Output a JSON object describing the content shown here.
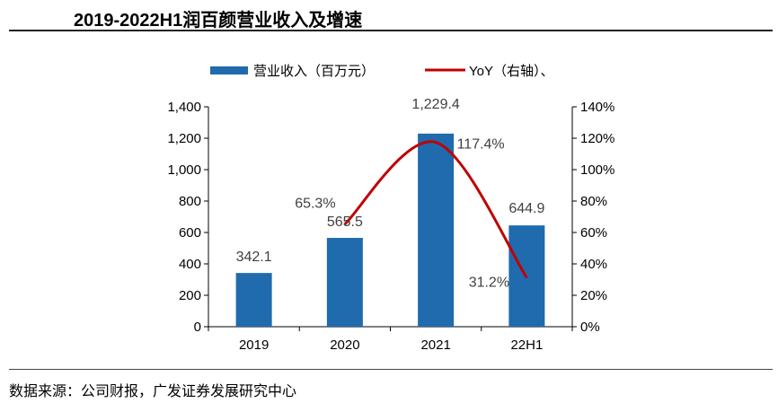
{
  "title": "2019-2022H1润百颜营业收入及增速",
  "source": "数据来源：公司财报，广发证券发展研究中心",
  "chart_data": {
    "type": "bar",
    "title": "2019-2022H1润百颜营业收入及增速",
    "categories": [
      "2019",
      "2020",
      "2021",
      "22H1"
    ],
    "series": [
      {
        "name": "营业收入（百万元）",
        "type": "bar",
        "axis": "left",
        "color": "#1F6BAE",
        "values": [
          342.1,
          565.5,
          1229.4,
          644.9
        ],
        "labels": [
          "342.1",
          "565.5",
          "1,229.4",
          "644.9"
        ]
      },
      {
        "name": "YoY（右轴）、",
        "type": "line",
        "axis": "right",
        "color": "#C00000",
        "values": [
          null,
          65.3,
          117.4,
          31.2
        ],
        "labels": [
          "",
          "65.3%",
          "117.4%",
          "31.2%"
        ]
      }
    ],
    "ylim": [
      0,
      1400
    ],
    "y_ticks": [
      "0",
      "200",
      "400",
      "600",
      "800",
      "1,000",
      "1,200",
      "1,400"
    ],
    "y2lim": [
      0,
      140
    ],
    "y2_ticks": [
      "0%",
      "20%",
      "40%",
      "60%",
      "80%",
      "100%",
      "120%",
      "140%"
    ],
    "legend": "top",
    "grid": false
  }
}
